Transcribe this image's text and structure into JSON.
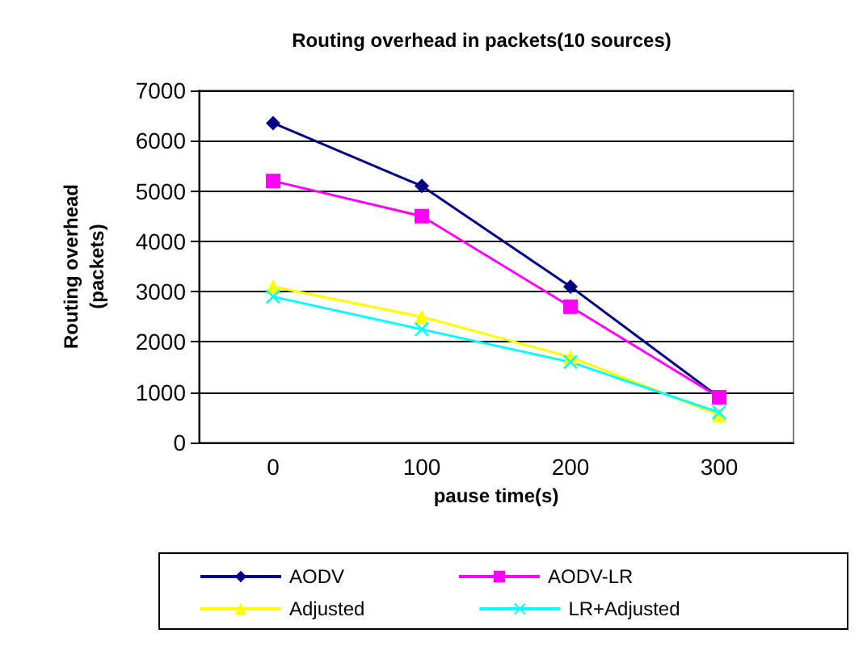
{
  "chart_data": {
    "type": "line",
    "title": "Routing overhead in packets(10 sources)",
    "xlabel": "pause time(s)",
    "ylabel": "Routing overhead\n(packets)",
    "categories": [
      "0",
      "100",
      "200",
      "300"
    ],
    "series": [
      {
        "name": "AODV",
        "color": "#000080",
        "marker": "diamond",
        "values": [
          6350,
          5100,
          3100,
          900
        ]
      },
      {
        "name": "AODV-LR",
        "color": "#ff00ff",
        "marker": "square",
        "values": [
          5200,
          4500,
          2700,
          900
        ]
      },
      {
        "name": "Adjusted",
        "color": "#ffff00",
        "marker": "triangle",
        "values": [
          3100,
          2500,
          1700,
          550
        ]
      },
      {
        "name": "LR+Adjusted",
        "color": "#00ffff",
        "marker": "cross",
        "values": [
          2900,
          2250,
          1600,
          600
        ]
      }
    ],
    "ylim": [
      0,
      7000
    ],
    "yticks": [
      0,
      1000,
      2000,
      3000,
      4000,
      5000,
      6000,
      7000
    ],
    "grid": "y",
    "legend": "bottom"
  }
}
